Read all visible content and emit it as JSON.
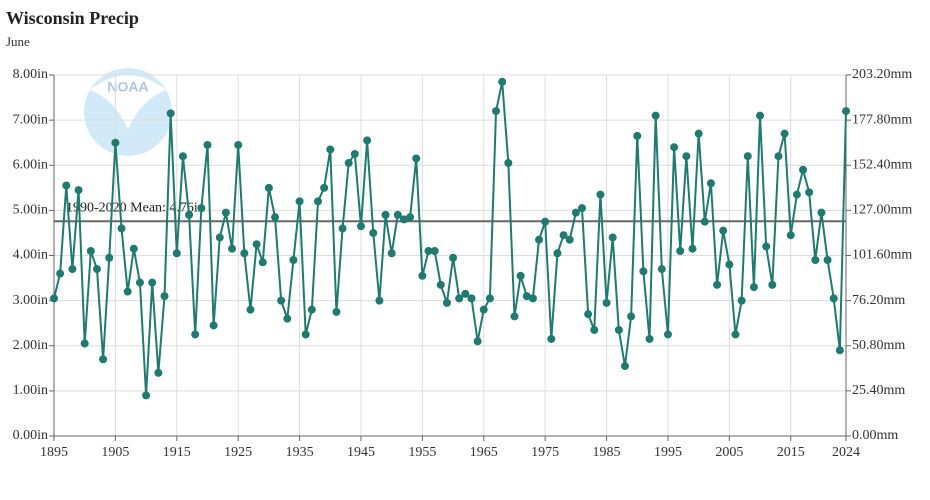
{
  "chart_data": {
    "type": "line",
    "title": "Wisconsin Precip",
    "subtitle": "June",
    "watermark": "NOAA",
    "x": [
      1895,
      1896,
      1897,
      1898,
      1899,
      1900,
      1901,
      1902,
      1903,
      1904,
      1905,
      1906,
      1907,
      1908,
      1909,
      1910,
      1911,
      1912,
      1913,
      1914,
      1915,
      1916,
      1917,
      1918,
      1919,
      1920,
      1921,
      1922,
      1923,
      1924,
      1925,
      1926,
      1927,
      1928,
      1929,
      1930,
      1931,
      1932,
      1933,
      1934,
      1935,
      1936,
      1937,
      1938,
      1939,
      1940,
      1941,
      1942,
      1943,
      1944,
      1945,
      1946,
      1947,
      1948,
      1949,
      1950,
      1951,
      1952,
      1953,
      1954,
      1955,
      1956,
      1957,
      1958,
      1959,
      1960,
      1961,
      1962,
      1963,
      1964,
      1965,
      1966,
      1967,
      1968,
      1969,
      1970,
      1971,
      1972,
      1973,
      1974,
      1975,
      1976,
      1977,
      1978,
      1979,
      1980,
      1981,
      1982,
      1983,
      1984,
      1985,
      1986,
      1987,
      1988,
      1989,
      1990,
      1991,
      1992,
      1993,
      1994,
      1995,
      1996,
      1997,
      1998,
      1999,
      2000,
      2001,
      2002,
      2003,
      2004,
      2005,
      2006,
      2007,
      2008,
      2009,
      2010,
      2011,
      2012,
      2013,
      2014,
      2015,
      2016,
      2017,
      2018,
      2019,
      2020,
      2021,
      2022,
      2023,
      2024
    ],
    "series": [
      {
        "name": "Precipitation",
        "color": "#1f7a70",
        "values": [
          3.05,
          3.6,
          5.55,
          3.7,
          5.45,
          2.05,
          4.1,
          3.7,
          1.7,
          3.95,
          6.5,
          4.6,
          3.2,
          4.15,
          3.4,
          0.9,
          3.4,
          1.4,
          3.1,
          7.15,
          4.05,
          6.2,
          4.9,
          2.25,
          5.05,
          6.45,
          2.45,
          4.4,
          4.95,
          4.15,
          6.45,
          4.05,
          2.8,
          4.25,
          3.85,
          5.5,
          4.85,
          3.0,
          2.6,
          3.9,
          5.2,
          2.25,
          2.8,
          5.2,
          5.5,
          6.35,
          2.75,
          4.6,
          6.05,
          6.25,
          4.65,
          6.55,
          4.5,
          3.0,
          4.9,
          4.05,
          4.9,
          4.8,
          4.85,
          6.15,
          3.55,
          4.1,
          4.1,
          3.35,
          2.95,
          3.95,
          3.05,
          3.15,
          3.05,
          2.1,
          2.8,
          3.05,
          7.2,
          7.85,
          6.05,
          2.65,
          3.55,
          3.1,
          3.05,
          4.35,
          4.75,
          2.15,
          4.05,
          4.45,
          4.35,
          4.95,
          5.05,
          2.7,
          2.35,
          5.35,
          2.95,
          4.4,
          2.35,
          1.55,
          2.65,
          6.65,
          3.65,
          2.15,
          7.1,
          3.7,
          2.25,
          6.4,
          4.1,
          6.2,
          4.15,
          6.7,
          4.75,
          5.6,
          3.35,
          4.55,
          3.8,
          2.25,
          3.0,
          6.2,
          3.3,
          7.1,
          4.2,
          3.35,
          6.2,
          6.7,
          4.45,
          5.35,
          5.9,
          5.4,
          3.9,
          4.95,
          3.9,
          3.05,
          1.9,
          7.2
        ]
      }
    ],
    "mean": {
      "value": 4.76,
      "label": "1990-2020 Mean: 4.76in"
    },
    "xlim": [
      1895,
      2024
    ],
    "xticks": [
      1895,
      1905,
      1915,
      1925,
      1935,
      1945,
      1955,
      1965,
      1975,
      1985,
      1995,
      2005,
      2015,
      2024
    ],
    "ylim": [
      0,
      8
    ],
    "yticks": [
      {
        "value": 0,
        "label": "0.00in"
      },
      {
        "value": 1,
        "label": "1.00in"
      },
      {
        "value": 2,
        "label": "2.00in"
      },
      {
        "value": 3,
        "label": "3.00in"
      },
      {
        "value": 4,
        "label": "4.00in"
      },
      {
        "value": 5,
        "label": "5.00in"
      },
      {
        "value": 6,
        "label": "6.00in"
      },
      {
        "value": 7,
        "label": "7.00in"
      },
      {
        "value": 8,
        "label": "8.00in"
      }
    ],
    "y2lim": [
      0,
      203.2
    ],
    "y2ticks": [
      {
        "value": 0,
        "label": "0.00mm"
      },
      {
        "value": 25.4,
        "label": "25.40mm"
      },
      {
        "value": 50.8,
        "label": "50.80mm"
      },
      {
        "value": 76.2,
        "label": "76.20mm"
      },
      {
        "value": 101.6,
        "label": "101.60mm"
      },
      {
        "value": 127,
        "label": "127.00mm"
      },
      {
        "value": 152.4,
        "label": "152.40mm"
      },
      {
        "value": 177.8,
        "label": "177.80mm"
      },
      {
        "value": 203.2,
        "label": "203.20mm"
      }
    ],
    "grid": true
  }
}
